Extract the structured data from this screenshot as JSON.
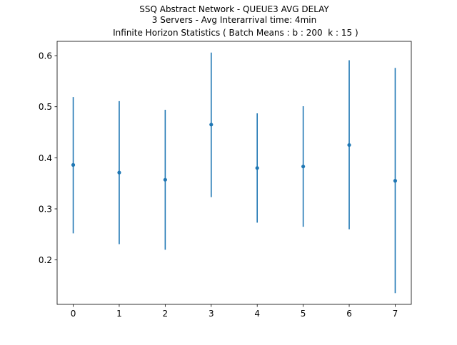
{
  "chart_data": {
    "type": "scatter",
    "title_lines": [
      "SSQ Abstract Network - QUEUE3 AVG DELAY",
      "3 Servers -  Avg Interarrival time: 4min",
      " Infinite Horizon Statistics ( Batch Means : b : 200  k : 15 )"
    ],
    "xlabel": "",
    "ylabel": "",
    "x": [
      0,
      1,
      2,
      3,
      4,
      5,
      6,
      7
    ],
    "y": [
      0.386,
      0.371,
      0.357,
      0.465,
      0.38,
      0.383,
      0.425,
      0.355
    ],
    "error_low": [
      0.252,
      0.231,
      0.22,
      0.323,
      0.273,
      0.265,
      0.26,
      0.135
    ],
    "error_high": [
      0.519,
      0.511,
      0.494,
      0.606,
      0.487,
      0.501,
      0.591,
      0.576
    ],
    "xlim": [
      -0.35,
      7.35
    ],
    "ylim": [
      0.113,
      0.628
    ],
    "xticks": [
      0,
      1,
      2,
      3,
      4,
      5,
      6,
      7
    ],
    "xtick_labels": [
      "0",
      "1",
      "2",
      "3",
      "4",
      "5",
      "6",
      "7"
    ],
    "yticks": [
      0.2,
      0.3,
      0.4,
      0.5,
      0.6
    ],
    "ytick_labels": [
      "0.2",
      "0.3",
      "0.4",
      "0.5",
      "0.6"
    ],
    "grid": false,
    "legend": "none",
    "series_color": "#1f77b4"
  }
}
